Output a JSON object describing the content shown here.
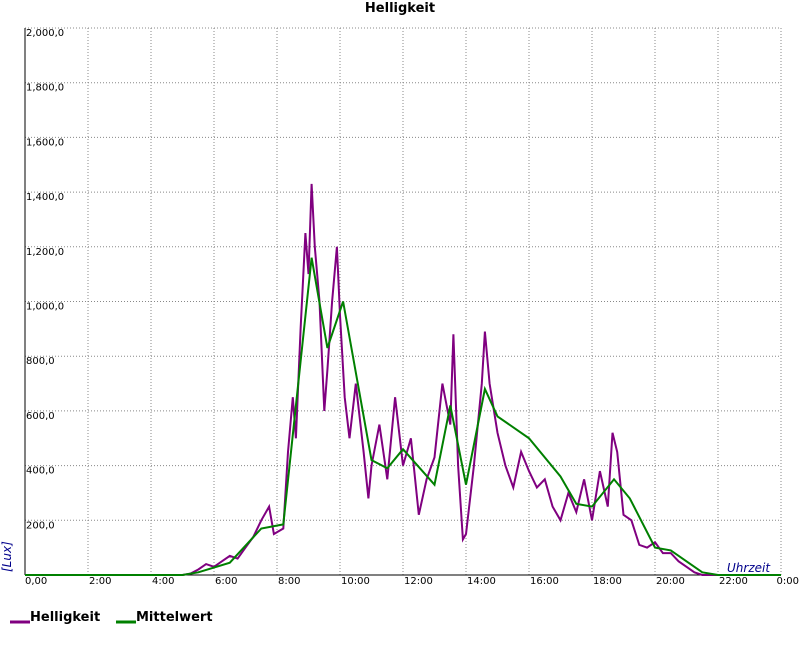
{
  "chart_data": {
    "type": "line",
    "title": "Helligkeit",
    "x_label": "Uhrzeit",
    "y_label": "[Lux]",
    "xlim": [
      0,
      24
    ],
    "ylim": [
      0,
      2000
    ],
    "grid": true,
    "xticks": [
      {
        "value": 0,
        "label": "0,00"
      },
      {
        "value": 2,
        "label": "2:00"
      },
      {
        "value": 4,
        "label": "4:00"
      },
      {
        "value": 6,
        "label": "6:00"
      },
      {
        "value": 8,
        "label": "8:00"
      },
      {
        "value": 10,
        "label": "10:00"
      },
      {
        "value": 12,
        "label": "12:00"
      },
      {
        "value": 14,
        "label": "14:00"
      },
      {
        "value": 16,
        "label": "16:00"
      },
      {
        "value": 18,
        "label": "18:00"
      },
      {
        "value": 20,
        "label": "20:00"
      },
      {
        "value": 22,
        "label": "22:00"
      },
      {
        "value": 24,
        "label": "0:00"
      }
    ],
    "yticks": [
      {
        "value": 200,
        "label": "200,0"
      },
      {
        "value": 400,
        "label": "400,0"
      },
      {
        "value": 600,
        "label": "600,0"
      },
      {
        "value": 800,
        "label": "800,0"
      },
      {
        "value": 1000,
        "label": "1,000,0"
      },
      {
        "value": 1200,
        "label": "1,200,0"
      },
      {
        "value": 1400,
        "label": "1,400,0"
      },
      {
        "value": 1600,
        "label": "1,600,0"
      },
      {
        "value": 1800,
        "label": "1,800,0"
      },
      {
        "value": 2000,
        "label": "2,000,0"
      }
    ],
    "series": [
      {
        "name": "Helligkeit",
        "color": "#800080",
        "x": [
          0,
          5,
          5.25,
          5.5,
          5.75,
          6,
          6.25,
          6.5,
          6.75,
          7,
          7.25,
          7.5,
          7.75,
          7.9,
          8.2,
          8.35,
          8.5,
          8.6,
          8.75,
          8.9,
          9,
          9.1,
          9.2,
          9.35,
          9.5,
          9.6,
          9.75,
          9.9,
          10,
          10.15,
          10.3,
          10.5,
          10.75,
          10.9,
          11,
          11.25,
          11.5,
          11.75,
          12,
          12.25,
          12.5,
          12.75,
          13,
          13.25,
          13.5,
          13.6,
          13.75,
          13.9,
          14,
          14.25,
          14.5,
          14.6,
          14.75,
          15,
          15.25,
          15.5,
          15.75,
          16,
          16.25,
          16.5,
          16.75,
          17,
          17.25,
          17.5,
          17.75,
          18,
          18.25,
          18.5,
          18.65,
          18.8,
          19,
          19.25,
          19.5,
          19.75,
          20,
          20.25,
          20.5,
          20.75,
          21,
          21.25,
          21.5,
          24
        ],
        "values": [
          0,
          0,
          5,
          20,
          40,
          30,
          50,
          70,
          60,
          100,
          140,
          200,
          250,
          150,
          170,
          450,
          650,
          500,
          900,
          1250,
          1100,
          1430,
          1200,
          1000,
          600,
          750,
          1000,
          1200,
          950,
          650,
          500,
          700,
          450,
          280,
          400,
          550,
          350,
          650,
          400,
          500,
          220,
          350,
          430,
          700,
          550,
          880,
          400,
          130,
          150,
          400,
          700,
          890,
          700,
          520,
          400,
          320,
          450,
          380,
          320,
          350,
          250,
          200,
          300,
          230,
          350,
          200,
          380,
          250,
          520,
          450,
          220,
          200,
          110,
          100,
          120,
          80,
          80,
          50,
          30,
          10,
          0,
          0
        ]
      },
      {
        "name": "Mittelwert",
        "color": "#008000",
        "x": [
          0,
          5,
          5.5,
          6.5,
          7.5,
          8.2,
          9.1,
          9.6,
          10.1,
          11,
          11.5,
          12,
          13,
          13.5,
          14,
          14.6,
          15,
          16,
          17,
          17.5,
          18,
          18.7,
          19.2,
          20,
          20.5,
          21.5,
          22,
          24
        ],
        "values": [
          0,
          0,
          10,
          45,
          170,
          185,
          1160,
          830,
          1000,
          420,
          390,
          460,
          330,
          620,
          330,
          680,
          580,
          500,
          360,
          260,
          250,
          350,
          280,
          100,
          90,
          10,
          0,
          0
        ]
      }
    ]
  }
}
